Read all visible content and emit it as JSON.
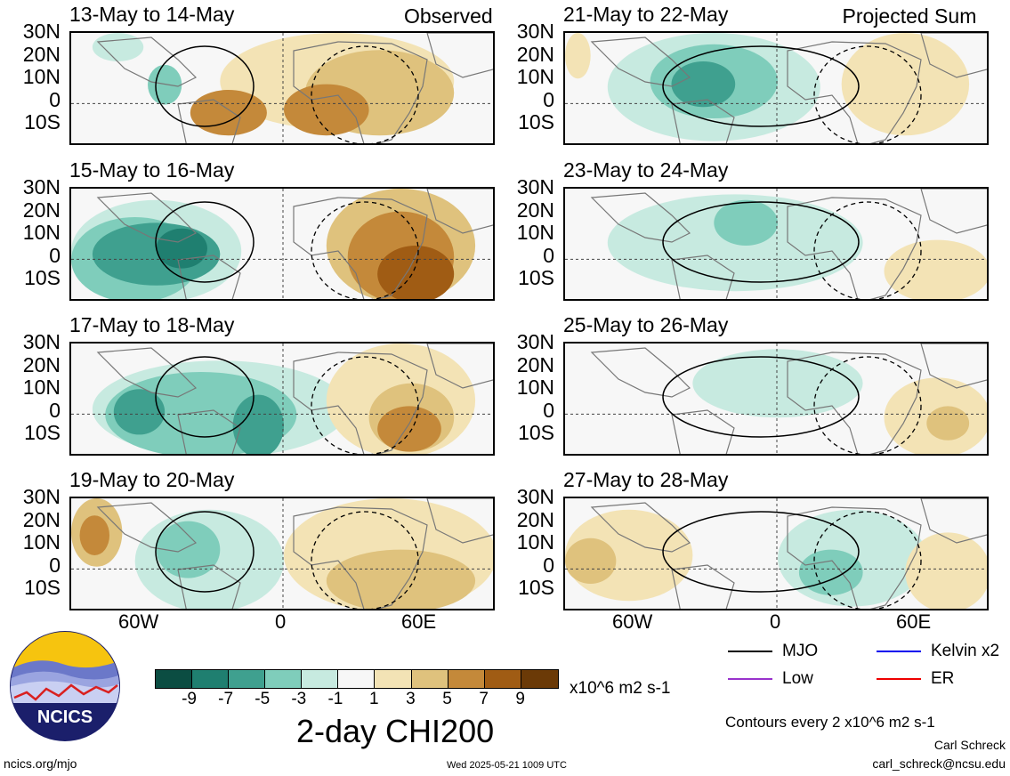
{
  "panels": [
    {
      "id": "p1",
      "title": "13-May to 14-May",
      "tag": "Observed",
      "col": 0,
      "row": 0
    },
    {
      "id": "p2",
      "title": "15-May to 16-May",
      "tag": "",
      "col": 0,
      "row": 1
    },
    {
      "id": "p3",
      "title": "17-May to 18-May",
      "tag": "",
      "col": 0,
      "row": 2
    },
    {
      "id": "p4",
      "title": "19-May to 20-May",
      "tag": "",
      "col": 0,
      "row": 3
    },
    {
      "id": "p5",
      "title": "21-May to 22-May",
      "tag": "Projected Sum",
      "col": 1,
      "row": 0
    },
    {
      "id": "p6",
      "title": "23-May to 24-May",
      "tag": "",
      "col": 1,
      "row": 1
    },
    {
      "id": "p7",
      "title": "25-May to 26-May",
      "tag": "",
      "col": 1,
      "row": 2
    },
    {
      "id": "p8",
      "title": "27-May to 28-May",
      "tag": "",
      "col": 1,
      "row": 3
    }
  ],
  "lat_labels": [
    "30N",
    "20N",
    "10N",
    "0",
    "10S"
  ],
  "lon_labels": [
    "60W",
    "0",
    "60E"
  ],
  "colorbar": {
    "colors": [
      "#0b4d42",
      "#1f7f70",
      "#3fa08f",
      "#7fcdbb",
      "#c7eae0",
      "#f7f7f7",
      "#f3e3b5",
      "#dfc27d",
      "#c4893a",
      "#a05c14",
      "#6b3a07"
    ],
    "labels": [
      "-9",
      "-7",
      "-5",
      "-3",
      "-1",
      "1",
      "3",
      "5",
      "7",
      "9"
    ],
    "units": "x10^6 m2 s-1",
    "title": "2-day CHI200"
  },
  "legend": {
    "items": [
      {
        "label": "MJO",
        "color": "#000000"
      },
      {
        "label": "Kelvin x2",
        "color": "#0000ee"
      },
      {
        "label": "Low",
        "color": "#9933cc"
      },
      {
        "label": "ER",
        "color": "#ee0000"
      }
    ],
    "contour_note": "Contours every 2 x10^6 m2 s-1"
  },
  "logo": {
    "text": "NCICS"
  },
  "footer": {
    "left": "ncics.org/mjo",
    "center": "Wed 2025-05-21 1009 UTC",
    "author": "Carl Schreck",
    "email": "carl_schreck@ncsu.edu"
  }
}
